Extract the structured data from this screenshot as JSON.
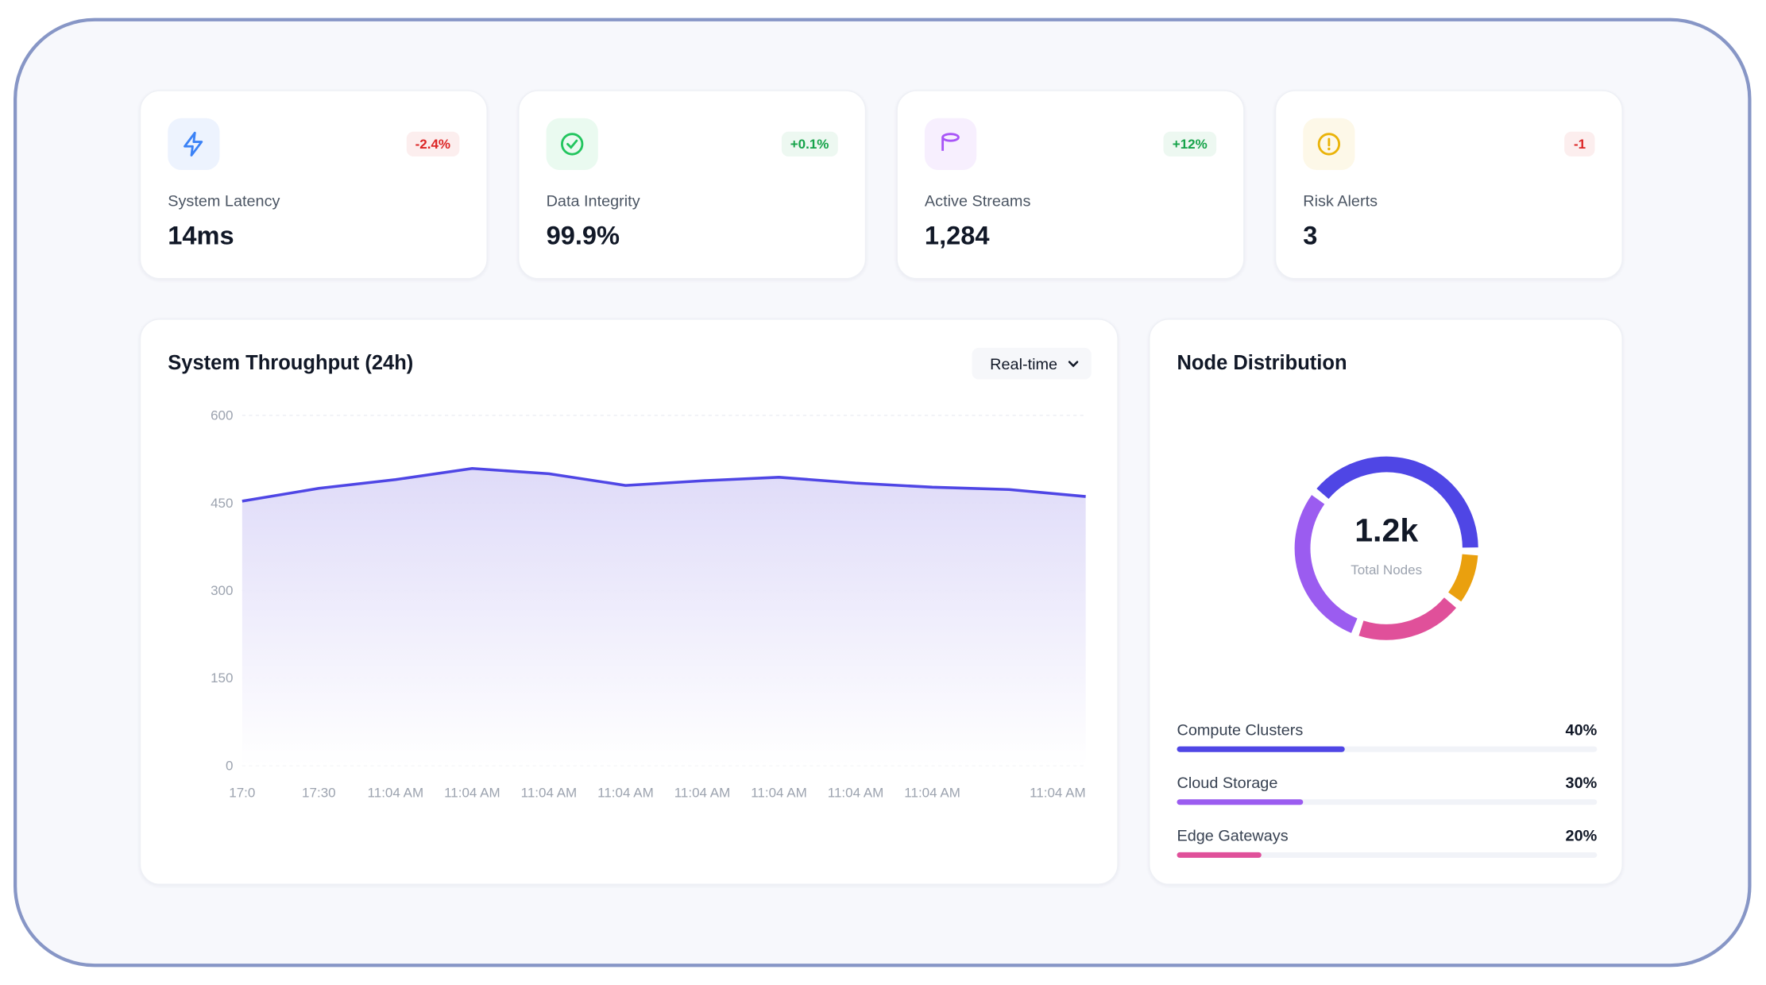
{
  "cards": [
    {
      "label": "System Latency",
      "value": "14ms",
      "change": "-2.4%",
      "color": "#3b82f6",
      "badge_color": "#dc2626"
    },
    {
      "label": "Data Integrity",
      "value": "99.9%",
      "change": "+0.1%",
      "color": "#22c55e",
      "badge_color": "#16a34a"
    },
    {
      "label": "Active Streams",
      "value": "1,284",
      "change": "+12%",
      "color": "#a855f7",
      "badge_color": "#16a34a"
    },
    {
      "label": "Risk Alerts",
      "value": "3",
      "change": "-1",
      "color": "#eab308",
      "badge_color": "#dc2626"
    }
  ],
  "throughput": {
    "type": "line",
    "title": "System Throughput (24h)",
    "range": "Real-time",
    "categories": [
      "17:0",
      "17:30",
      "11:04 AM",
      "11:04 AM",
      "11:04 AM",
      "11:04 AM",
      "11:04 AM",
      "11:04 AM",
      "11:04 AM",
      "11:04 AM",
      null,
      "11:04 AM"
    ],
    "values": [
      453,
      475,
      490,
      509,
      500,
      480,
      488,
      494,
      484,
      477,
      473,
      461
    ],
    "ylim": [
      0,
      600
    ],
    "yticks": [
      0,
      150,
      300,
      450,
      600
    ],
    "color": "#4f46e5",
    "grid": true
  },
  "distribution": {
    "title": "Node Distribution",
    "center_value": "1.2k",
    "center_label": "Total Nodes",
    "segments": [
      {
        "name": "Compute Clusters",
        "value": 40,
        "label": "40%",
        "color": "#4f46e5"
      },
      {
        "name": "Cloud Storage",
        "value": 30,
        "label": "30%",
        "color": "#9b5cf0"
      },
      {
        "name": "Edge Gateways",
        "value": 20,
        "label": "20%",
        "color": "#e0509a"
      },
      {
        "value": 10,
        "color": "#eaa00e"
      }
    ]
  }
}
